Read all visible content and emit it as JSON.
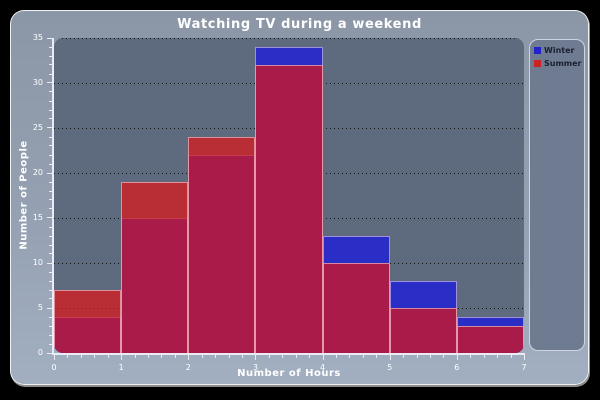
{
  "title": "Watching TV during a weekend",
  "axes": {
    "xlabel": "Number of Hours",
    "ylabel": "Number of People"
  },
  "legend": {
    "position": "right",
    "items": [
      {
        "label": "Winter",
        "color": "#2222cc"
      },
      {
        "label": "Summer",
        "color": "#cc2222"
      }
    ]
  },
  "colors": {
    "page_background": "#000000",
    "card_top": "#8b96a6",
    "card_bottom": "#a2afc1",
    "plot_background": "#5e6a7e",
    "winter_fill": "rgba(22,22,230,0.7)",
    "summer_fill": "rgba(224,22,22,0.7)",
    "winter_solid": "#2b2bc8",
    "summer_solid": "#b93036",
    "overlap_blend": "#a31254",
    "axis": "#e9edf3",
    "tick_label": "#ffffff",
    "grid": "#0c0c0e",
    "legend_background": "#6e7b91",
    "legend_text": "#1a2030"
  },
  "chart_data": {
    "type": "bar",
    "subtype": "overlapping-histogram",
    "title": "Watching TV during a weekend",
    "xlabel": "Number of Hours",
    "ylabel": "Number of People",
    "bin_edges": [
      0,
      1,
      2,
      3,
      4,
      5,
      6,
      7
    ],
    "categories": [
      "0-1",
      "1-2",
      "2-3",
      "3-4",
      "4-5",
      "5-6",
      "6-7"
    ],
    "series": [
      {
        "name": "Winter",
        "values": [
          4,
          15,
          22,
          34,
          13,
          8,
          4
        ]
      },
      {
        "name": "Summer",
        "values": [
          7,
          19,
          24,
          32,
          10,
          5,
          3
        ]
      }
    ],
    "xlim": [
      0,
      7
    ],
    "ylim": [
      0,
      35
    ],
    "xticks": [
      0,
      1,
      2,
      3,
      4,
      5,
      6,
      7
    ],
    "yticks": [
      0,
      5,
      10,
      15,
      20,
      25,
      30,
      35
    ],
    "x_minor_step": 0.2,
    "y_minor_step": 1,
    "grid": "horizontal-dotted",
    "legend_position": "right",
    "draw_order": "Winter first, Summer on top with alpha"
  }
}
